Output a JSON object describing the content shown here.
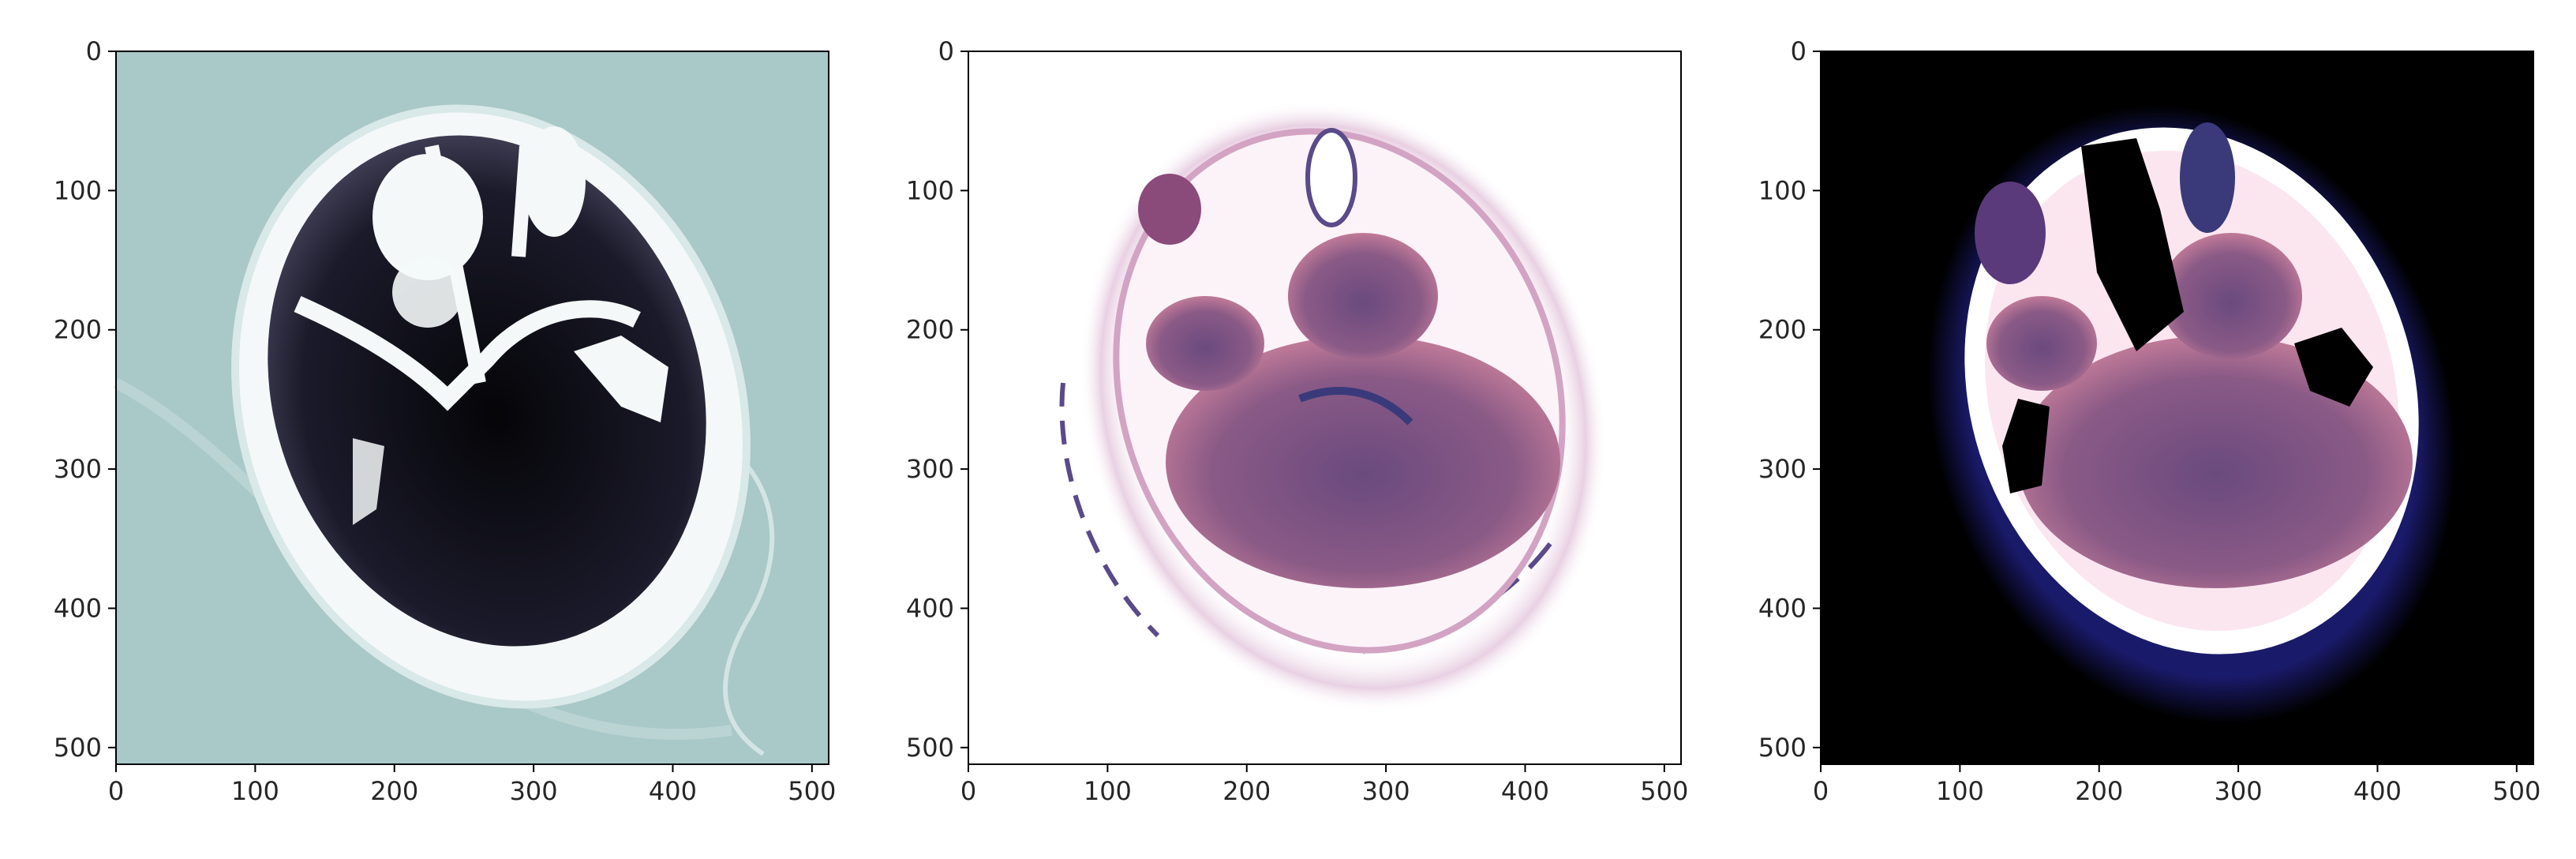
{
  "panels": [
    {
      "name": "ct-slice-bone-colormap",
      "background": "#a9c8c8",
      "tissue": "#16141f",
      "skull": "#ffffff",
      "x_ticks": [
        "0",
        "100",
        "200",
        "300",
        "400",
        "500"
      ],
      "y_ticks": [
        "0",
        "100",
        "200",
        "300",
        "400",
        "500"
      ]
    },
    {
      "name": "ct-slice-rdpu-colormap",
      "background": "#ffffff",
      "tissue": "#7a4a7c",
      "skull": "#ffffff",
      "x_ticks": [
        "0",
        "100",
        "200",
        "300",
        "400",
        "500"
      ],
      "y_ticks": [
        "0",
        "100",
        "200",
        "300",
        "400",
        "500"
      ]
    },
    {
      "name": "ct-slice-magma-colormap",
      "background": "#000000",
      "tissue": "#7a4a7c",
      "skull": "#ffffff",
      "x_ticks": [
        "0",
        "100",
        "200",
        "300",
        "400",
        "500"
      ],
      "y_ticks": [
        "0",
        "100",
        "200",
        "300",
        "400",
        "500"
      ]
    }
  ],
  "axis_range": [
    0,
    512
  ]
}
